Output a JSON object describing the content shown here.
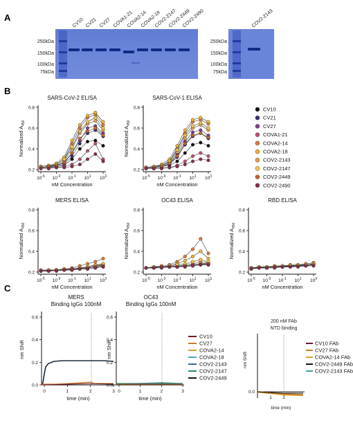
{
  "panel_labels": [
    "A",
    "B",
    "C"
  ],
  "gel": {
    "left_lanes": [
      "CV10",
      "CV21",
      "CV27",
      "COVA1-21",
      "COVA2-14",
      "COVA2-18",
      "COV2-2147",
      "COV2-2449",
      "COV2-2490"
    ],
    "right_lanes": [
      "COV2-2143"
    ],
    "markers": [
      "250kDa",
      "150kDa",
      "100kDa",
      "75kDa"
    ]
  },
  "elisa_legend": [
    "CV10",
    "CV21",
    "CV27",
    "COVA1-21",
    "COVA2-14",
    "COVA2-18",
    "COV2-2143",
    "COV2-2147",
    "COV2-2449",
    "COV2-2490"
  ],
  "elisa_colors": [
    "#111111",
    "#3b2a7a",
    "#7a3c8c",
    "#c24f6a",
    "#e07a3a",
    "#f0b42a",
    "#e8a040",
    "#f2c640",
    "#c8642a",
    "#8a2a4a"
  ],
  "x_tick_labels": [
    "10-5",
    "10-3",
    "10-1",
    "101",
    "103"
  ],
  "y_tick_labels": [
    "0.2",
    "0.4",
    "0.6",
    "0.8"
  ],
  "elisa_xlabel": "nM Concentration",
  "elisa_ylabel": "Normalized A450",
  "bli": {
    "panel1_title": [
      "MERS",
      "Binding IgGs 100nM"
    ],
    "panel2_title": [
      "OC43",
      "Binding IgGs 100nM"
    ],
    "panel3_title": [
      "200 nM FAb",
      "NTD binding"
    ],
    "ylabel": "nm Shift",
    "xlabel": "time (min)",
    "y_ticks": [
      "0.6",
      "0.4",
      "0.2",
      "0.0"
    ],
    "x_ticks": [
      "0",
      "1",
      "2",
      "3"
    ],
    "legend": [
      "CV10",
      "CV27",
      "COVA2-14",
      "COVA2-18",
      "COV2-2143",
      "COV2-2147",
      "COV2-2449"
    ],
    "legend_colors": [
      "#6a1a2a",
      "#c87a2a",
      "#d8a020",
      "#4aa0b8",
      "#3a6a8a",
      "#2a8a6a",
      "#111111"
    ],
    "fab_legend": [
      "CV10 FAb",
      "CV27 FAb",
      "COVA2-14 FAb",
      "COV2-2449 FAb",
      "COV2-2143 FAb"
    ],
    "fab_colors": [
      "#6a1a2a",
      "#c87a2a",
      "#d8a020",
      "#111111",
      "#3aa0a0"
    ]
  },
  "chart_data": [
    {
      "type": "line",
      "title": "SARS-CoV-2 ELISA",
      "xlabel": "nM Concentration",
      "ylabel": "Normalized A450",
      "x": [
        -5,
        -4,
        -3,
        -2,
        -1,
        0,
        1,
        2,
        3
      ],
      "ylim": [
        0.2,
        0.8
      ],
      "series": [
        {
          "name": "CV10",
          "values": [
            0.22,
            0.22,
            0.23,
            0.24,
            0.3,
            0.4,
            0.47,
            0.48,
            0.43
          ]
        },
        {
          "name": "CV21",
          "values": [
            0.22,
            0.23,
            0.23,
            0.25,
            0.33,
            0.45,
            0.55,
            0.58,
            0.52
          ]
        },
        {
          "name": "CV27",
          "values": [
            0.22,
            0.22,
            0.24,
            0.26,
            0.36,
            0.48,
            0.6,
            0.62,
            0.55
          ]
        },
        {
          "name": "COVA1-21",
          "values": [
            0.22,
            0.22,
            0.22,
            0.23,
            0.25,
            0.3,
            0.38,
            0.45,
            0.3
          ]
        },
        {
          "name": "COVA2-14",
          "values": [
            0.23,
            0.24,
            0.25,
            0.3,
            0.45,
            0.6,
            0.7,
            0.73,
            0.63
          ]
        },
        {
          "name": "COVA2-18",
          "values": [
            0.23,
            0.24,
            0.26,
            0.32,
            0.48,
            0.63,
            0.72,
            0.75,
            0.66
          ]
        },
        {
          "name": "COV2-2143",
          "values": [
            0.22,
            0.23,
            0.24,
            0.28,
            0.4,
            0.55,
            0.64,
            0.67,
            0.58
          ]
        },
        {
          "name": "COV2-2147",
          "values": [
            0.22,
            0.23,
            0.25,
            0.3,
            0.42,
            0.57,
            0.66,
            0.7,
            0.6
          ]
        },
        {
          "name": "COV2-2449",
          "values": [
            0.22,
            0.23,
            0.24,
            0.27,
            0.36,
            0.5,
            0.57,
            0.6,
            0.53
          ]
        },
        {
          "name": "COV2-2490",
          "values": [
            0.21,
            0.21,
            0.22,
            0.22,
            0.23,
            0.25,
            0.3,
            0.35,
            0.28
          ]
        }
      ]
    },
    {
      "type": "line",
      "title": "SARS-CoV-1 ELISA",
      "xlabel": "nM Concentration",
      "ylabel": "Normalized A450",
      "x": [
        -5,
        -4,
        -3,
        -2,
        -1,
        0,
        1,
        2,
        3
      ],
      "ylim": [
        0.2,
        0.8
      ],
      "series": [
        {
          "name": "CV10",
          "values": [
            0.22,
            0.22,
            0.23,
            0.24,
            0.28,
            0.36,
            0.44,
            0.46,
            0.43
          ]
        },
        {
          "name": "CV21",
          "values": [
            0.22,
            0.22,
            0.23,
            0.25,
            0.32,
            0.44,
            0.52,
            0.55,
            0.5
          ]
        },
        {
          "name": "CV27",
          "values": [
            0.22,
            0.22,
            0.23,
            0.26,
            0.35,
            0.47,
            0.56,
            0.58,
            0.53
          ]
        },
        {
          "name": "COVA1-21",
          "values": [
            0.21,
            0.21,
            0.22,
            0.22,
            0.24,
            0.28,
            0.33,
            0.36,
            0.33
          ]
        },
        {
          "name": "COVA2-14",
          "values": [
            0.22,
            0.23,
            0.24,
            0.28,
            0.4,
            0.55,
            0.66,
            0.68,
            0.64
          ]
        },
        {
          "name": "COVA2-18",
          "values": [
            0.22,
            0.23,
            0.25,
            0.3,
            0.43,
            0.58,
            0.68,
            0.7,
            0.66
          ]
        },
        {
          "name": "COV2-2143",
          "values": [
            0.22,
            0.22,
            0.24,
            0.27,
            0.37,
            0.5,
            0.6,
            0.63,
            0.58
          ]
        },
        {
          "name": "COV2-2147",
          "values": [
            0.22,
            0.23,
            0.24,
            0.28,
            0.39,
            0.53,
            0.62,
            0.65,
            0.6
          ]
        },
        {
          "name": "COV2-2449",
          "values": [
            0.22,
            0.22,
            0.23,
            0.26,
            0.33,
            0.45,
            0.53,
            0.55,
            0.51
          ]
        },
        {
          "name": "COV2-2490",
          "values": [
            0.21,
            0.21,
            0.21,
            0.22,
            0.23,
            0.25,
            0.28,
            0.3,
            0.29
          ]
        }
      ]
    },
    {
      "type": "line",
      "title": "MERS ELISA",
      "xlabel": "nM Concentration",
      "ylabel": "Normalized A450",
      "x": [
        -5,
        -4,
        -3,
        -2,
        -1,
        0,
        1,
        2,
        3
      ],
      "ylim": [
        0.2,
        0.8
      ],
      "series": [
        {
          "name": "CV10",
          "values": [
            0.21,
            0.21,
            0.22,
            0.22,
            0.22,
            0.23,
            0.24,
            0.25,
            0.26
          ]
        },
        {
          "name": "CV21",
          "values": [
            0.21,
            0.22,
            0.22,
            0.22,
            0.23,
            0.23,
            0.24,
            0.25,
            0.26
          ]
        },
        {
          "name": "CV27",
          "values": [
            0.21,
            0.22,
            0.22,
            0.22,
            0.23,
            0.24,
            0.24,
            0.25,
            0.27
          ]
        },
        {
          "name": "COVA1-21",
          "values": [
            0.21,
            0.21,
            0.22,
            0.22,
            0.22,
            0.23,
            0.23,
            0.24,
            0.25
          ]
        },
        {
          "name": "COVA2-14",
          "values": [
            0.22,
            0.22,
            0.22,
            0.23,
            0.24,
            0.26,
            0.28,
            0.3,
            0.33
          ]
        },
        {
          "name": "COVA2-18",
          "values": [
            0.21,
            0.22,
            0.22,
            0.23,
            0.23,
            0.24,
            0.25,
            0.27,
            0.28
          ]
        },
        {
          "name": "COV2-2143",
          "values": [
            0.21,
            0.22,
            0.22,
            0.22,
            0.23,
            0.24,
            0.25,
            0.26,
            0.27
          ]
        },
        {
          "name": "COV2-2147",
          "values": [
            0.21,
            0.22,
            0.22,
            0.22,
            0.23,
            0.24,
            0.25,
            0.26,
            0.28
          ]
        },
        {
          "name": "COV2-2449",
          "values": [
            0.21,
            0.21,
            0.22,
            0.22,
            0.23,
            0.23,
            0.24,
            0.25,
            0.26
          ]
        },
        {
          "name": "COV2-2490",
          "values": [
            0.21,
            0.21,
            0.21,
            0.22,
            0.22,
            0.23,
            0.23,
            0.24,
            0.25
          ]
        }
      ]
    },
    {
      "type": "line",
      "title": "OC43 ELISA",
      "xlabel": "nM Concentration",
      "ylabel": "Normalized A450",
      "x": [
        -5,
        -4,
        -3,
        -2,
        -1,
        0,
        1,
        2,
        3
      ],
      "ylim": [
        0.2,
        0.8
      ],
      "series": [
        {
          "name": "CV10",
          "values": [
            0.24,
            0.25,
            0.25,
            0.25,
            0.25,
            0.26,
            0.26,
            0.27,
            0.27
          ]
        },
        {
          "name": "CV21",
          "values": [
            0.24,
            0.24,
            0.25,
            0.25,
            0.25,
            0.26,
            0.27,
            0.27,
            0.28
          ]
        },
        {
          "name": "CV27",
          "values": [
            0.24,
            0.25,
            0.25,
            0.25,
            0.26,
            0.26,
            0.27,
            0.28,
            0.29
          ]
        },
        {
          "name": "COVA1-21",
          "values": [
            0.24,
            0.24,
            0.25,
            0.25,
            0.25,
            0.26,
            0.27,
            0.28,
            0.28
          ]
        },
        {
          "name": "COVA2-14",
          "values": [
            0.24,
            0.25,
            0.26,
            0.27,
            0.3,
            0.35,
            0.42,
            0.52,
            0.38
          ]
        },
        {
          "name": "COVA2-18",
          "values": [
            0.24,
            0.25,
            0.25,
            0.26,
            0.28,
            0.31,
            0.35,
            0.4,
            0.33
          ]
        },
        {
          "name": "COV2-2143",
          "values": [
            0.24,
            0.24,
            0.25,
            0.25,
            0.26,
            0.27,
            0.28,
            0.3,
            0.29
          ]
        },
        {
          "name": "COV2-2147",
          "values": [
            0.24,
            0.25,
            0.25,
            0.26,
            0.27,
            0.28,
            0.3,
            0.32,
            0.3
          ]
        },
        {
          "name": "COV2-2449",
          "values": [
            0.24,
            0.24,
            0.25,
            0.25,
            0.25,
            0.26,
            0.27,
            0.28,
            0.28
          ]
        },
        {
          "name": "COV2-2490",
          "values": [
            0.24,
            0.24,
            0.24,
            0.25,
            0.25,
            0.25,
            0.26,
            0.27,
            0.27
          ]
        }
      ]
    },
    {
      "type": "line",
      "title": "RBD ELISA",
      "xlabel": "nM Concentration",
      "ylabel": "Normalized A450",
      "x": [
        -5,
        -4,
        -3,
        -2,
        -1,
        0,
        1,
        2,
        3
      ],
      "ylim": [
        0.2,
        0.8
      ],
      "series": [
        {
          "name": "CV10",
          "values": [
            0.24,
            0.24,
            0.25,
            0.25,
            0.25,
            0.25,
            0.26,
            0.26,
            0.27
          ]
        },
        {
          "name": "CV21",
          "values": [
            0.24,
            0.25,
            0.25,
            0.25,
            0.26,
            0.26,
            0.26,
            0.27,
            0.28
          ]
        },
        {
          "name": "CV27",
          "values": [
            0.24,
            0.24,
            0.25,
            0.25,
            0.25,
            0.26,
            0.26,
            0.27,
            0.27
          ]
        },
        {
          "name": "COVA1-21",
          "values": [
            0.23,
            0.24,
            0.24,
            0.25,
            0.25,
            0.25,
            0.26,
            0.26,
            0.27
          ]
        },
        {
          "name": "COVA2-14",
          "values": [
            0.24,
            0.25,
            0.25,
            0.26,
            0.26,
            0.27,
            0.27,
            0.28,
            0.29
          ]
        },
        {
          "name": "COVA2-18",
          "values": [
            0.24,
            0.24,
            0.25,
            0.25,
            0.26,
            0.26,
            0.27,
            0.27,
            0.28
          ]
        },
        {
          "name": "COV2-2143",
          "values": [
            0.24,
            0.24,
            0.25,
            0.25,
            0.25,
            0.26,
            0.26,
            0.27,
            0.28
          ]
        },
        {
          "name": "COV2-2147",
          "values": [
            0.24,
            0.25,
            0.25,
            0.25,
            0.26,
            0.26,
            0.27,
            0.27,
            0.28
          ]
        },
        {
          "name": "COV2-2449",
          "values": [
            0.24,
            0.24,
            0.24,
            0.25,
            0.25,
            0.25,
            0.26,
            0.26,
            0.27
          ]
        },
        {
          "name": "COV2-2490",
          "values": [
            0.23,
            0.24,
            0.24,
            0.24,
            0.25,
            0.25,
            0.25,
            0.26,
            0.26
          ]
        }
      ]
    }
  ]
}
